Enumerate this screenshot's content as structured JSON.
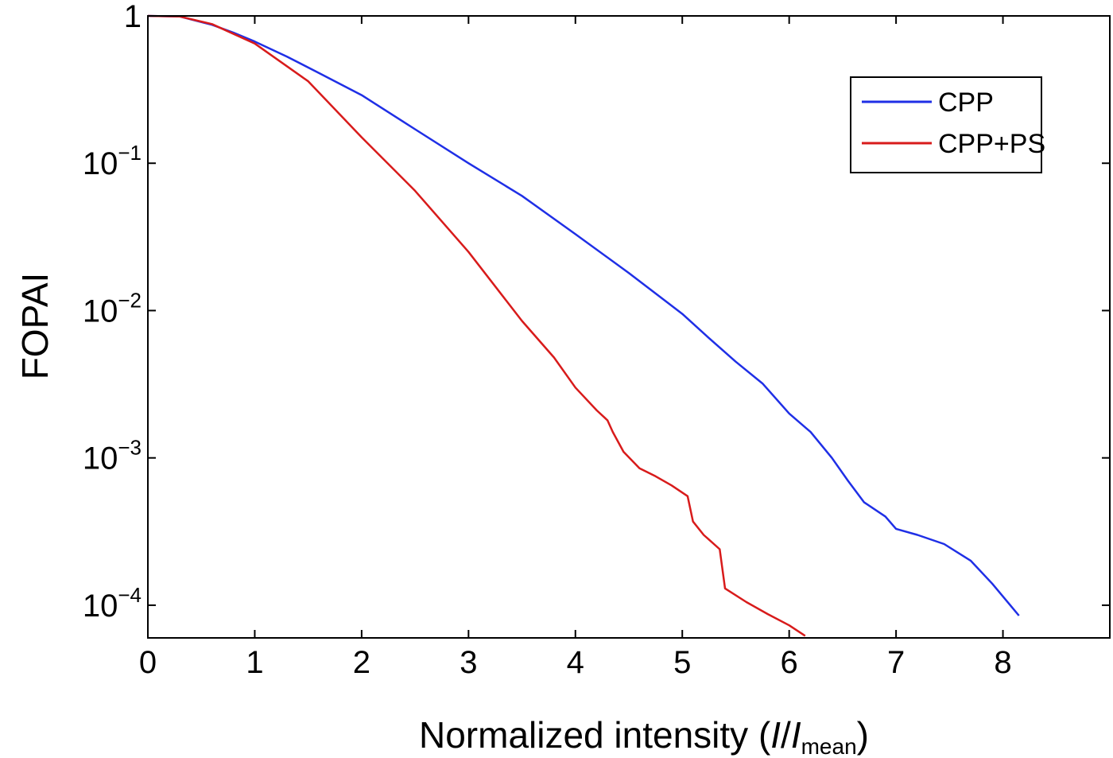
{
  "chart_data": {
    "type": "line",
    "xlabel": {
      "prefix": "Normalized intensity (",
      "var": "I",
      "slash": "/",
      "var2": "I",
      "sub": "mean",
      "suffix": ")"
    },
    "ylabel": "FOPAI",
    "xlim": [
      0,
      9
    ],
    "ylim": [
      6e-05,
      1
    ],
    "yscale": "log",
    "grid": false,
    "legend_position": "top-right",
    "x_ticks": [
      0,
      1,
      2,
      3,
      4,
      5,
      6,
      7,
      8
    ],
    "x_tick_labels": [
      "0",
      "1",
      "2",
      "3",
      "4",
      "5",
      "6",
      "7",
      "8"
    ],
    "y_ticks": [
      {
        "value": 1,
        "base": "1",
        "exp": ""
      },
      {
        "value": 0.1,
        "base": "10",
        "exp": "−1"
      },
      {
        "value": 0.01,
        "base": "10",
        "exp": "−2"
      },
      {
        "value": 0.001,
        "base": "10",
        "exp": "−3"
      },
      {
        "value": 0.0001,
        "base": "10",
        "exp": "−4"
      }
    ],
    "series": [
      {
        "name": "CPP",
        "color": "#1f2fe6",
        "points": [
          [
            0,
            1
          ],
          [
            0.3,
            0.99
          ],
          [
            0.6,
            0.87
          ],
          [
            0.8,
            0.77
          ],
          [
            1.0,
            0.67
          ],
          [
            1.3,
            0.53
          ],
          [
            1.6,
            0.41
          ],
          [
            2.0,
            0.29
          ],
          [
            2.5,
            0.17
          ],
          [
            3.0,
            0.1
          ],
          [
            3.5,
            0.06
          ],
          [
            4.0,
            0.033
          ],
          [
            4.5,
            0.018
          ],
          [
            5.0,
            0.0095
          ],
          [
            5.25,
            0.0065
          ],
          [
            5.5,
            0.0045
          ],
          [
            5.75,
            0.0032
          ],
          [
            6.0,
            0.002
          ],
          [
            6.2,
            0.0015
          ],
          [
            6.4,
            0.001
          ],
          [
            6.55,
            0.0007
          ],
          [
            6.7,
            0.0005
          ],
          [
            6.9,
            0.0004
          ],
          [
            7.0,
            0.00033
          ],
          [
            7.2,
            0.0003
          ],
          [
            7.45,
            0.00026
          ],
          [
            7.7,
            0.0002
          ],
          [
            7.9,
            0.00014
          ],
          [
            8.15,
            8.5e-05
          ]
        ]
      },
      {
        "name": "CPP+PS",
        "color": "#d81b1b",
        "points": [
          [
            0,
            1
          ],
          [
            0.3,
            0.99
          ],
          [
            0.6,
            0.88
          ],
          [
            1.0,
            0.65
          ],
          [
            1.5,
            0.36
          ],
          [
            2.0,
            0.15
          ],
          [
            2.5,
            0.065
          ],
          [
            3.0,
            0.025
          ],
          [
            3.5,
            0.0085
          ],
          [
            3.8,
            0.0048
          ],
          [
            4.0,
            0.003
          ],
          [
            4.2,
            0.0021
          ],
          [
            4.3,
            0.0018
          ],
          [
            4.35,
            0.0015
          ],
          [
            4.45,
            0.0011
          ],
          [
            4.6,
            0.00085
          ],
          [
            4.75,
            0.00075
          ],
          [
            4.9,
            0.00065
          ],
          [
            5.05,
            0.00055
          ],
          [
            5.1,
            0.00037
          ],
          [
            5.2,
            0.0003
          ],
          [
            5.35,
            0.00024
          ],
          [
            5.4,
            0.00013
          ],
          [
            5.6,
            0.000105
          ],
          [
            5.8,
            8.7e-05
          ],
          [
            6.0,
            7.3e-05
          ],
          [
            6.15,
            6.2e-05
          ]
        ]
      }
    ]
  }
}
